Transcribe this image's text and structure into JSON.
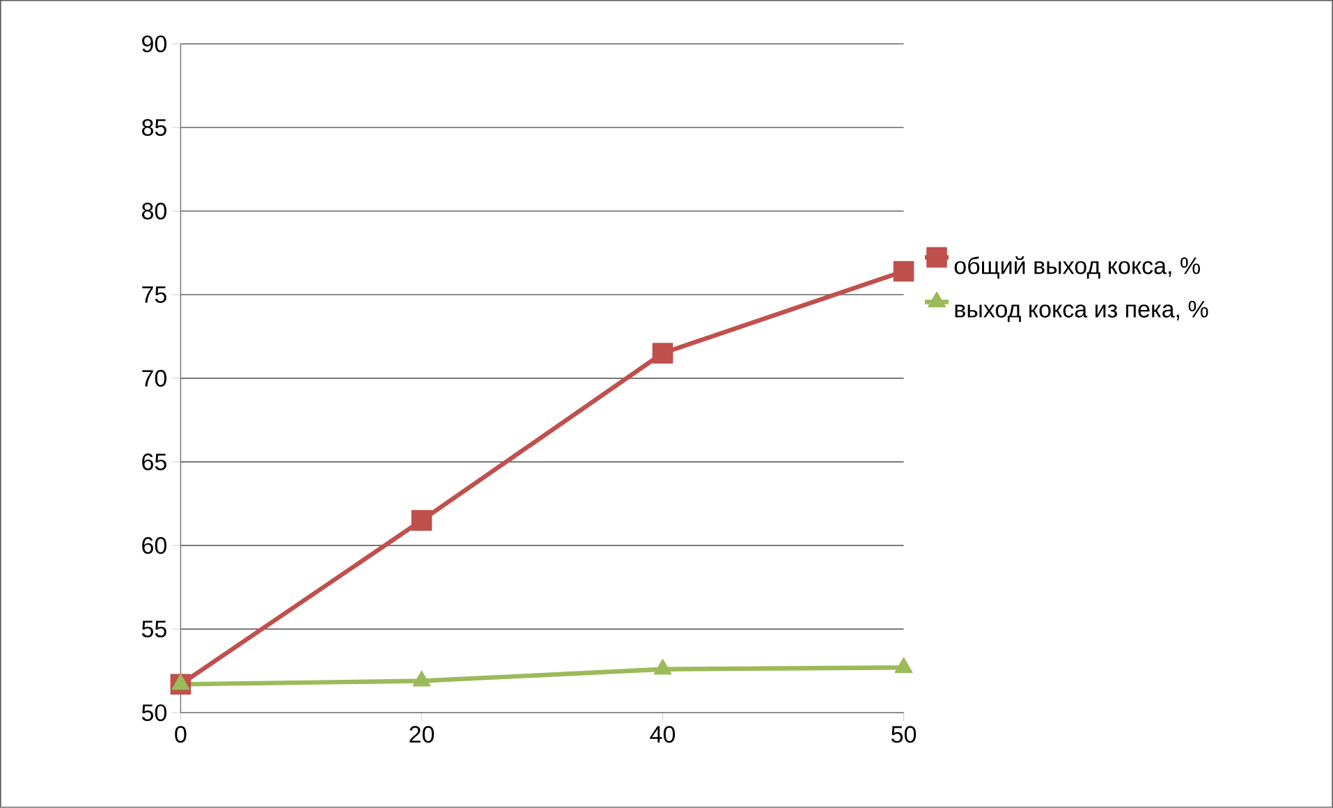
{
  "chart_data": {
    "type": "line",
    "categories": [
      "0",
      "20",
      "40",
      "50"
    ],
    "series": [
      {
        "name": "общий выход кокса, %",
        "color": "#c0504d",
        "marker": "square",
        "values": [
          51.7,
          61.5,
          71.5,
          76.4
        ]
      },
      {
        "name": "выход кокса из пека, %",
        "color": "#9bbb59",
        "marker": "triangle",
        "values": [
          51.7,
          51.9,
          52.6,
          52.7
        ]
      }
    ],
    "ylim": [
      50,
      90
    ],
    "yticks": [
      50,
      55,
      60,
      65,
      70,
      75,
      80,
      85,
      90
    ],
    "grid": "y",
    "legend": "right"
  }
}
